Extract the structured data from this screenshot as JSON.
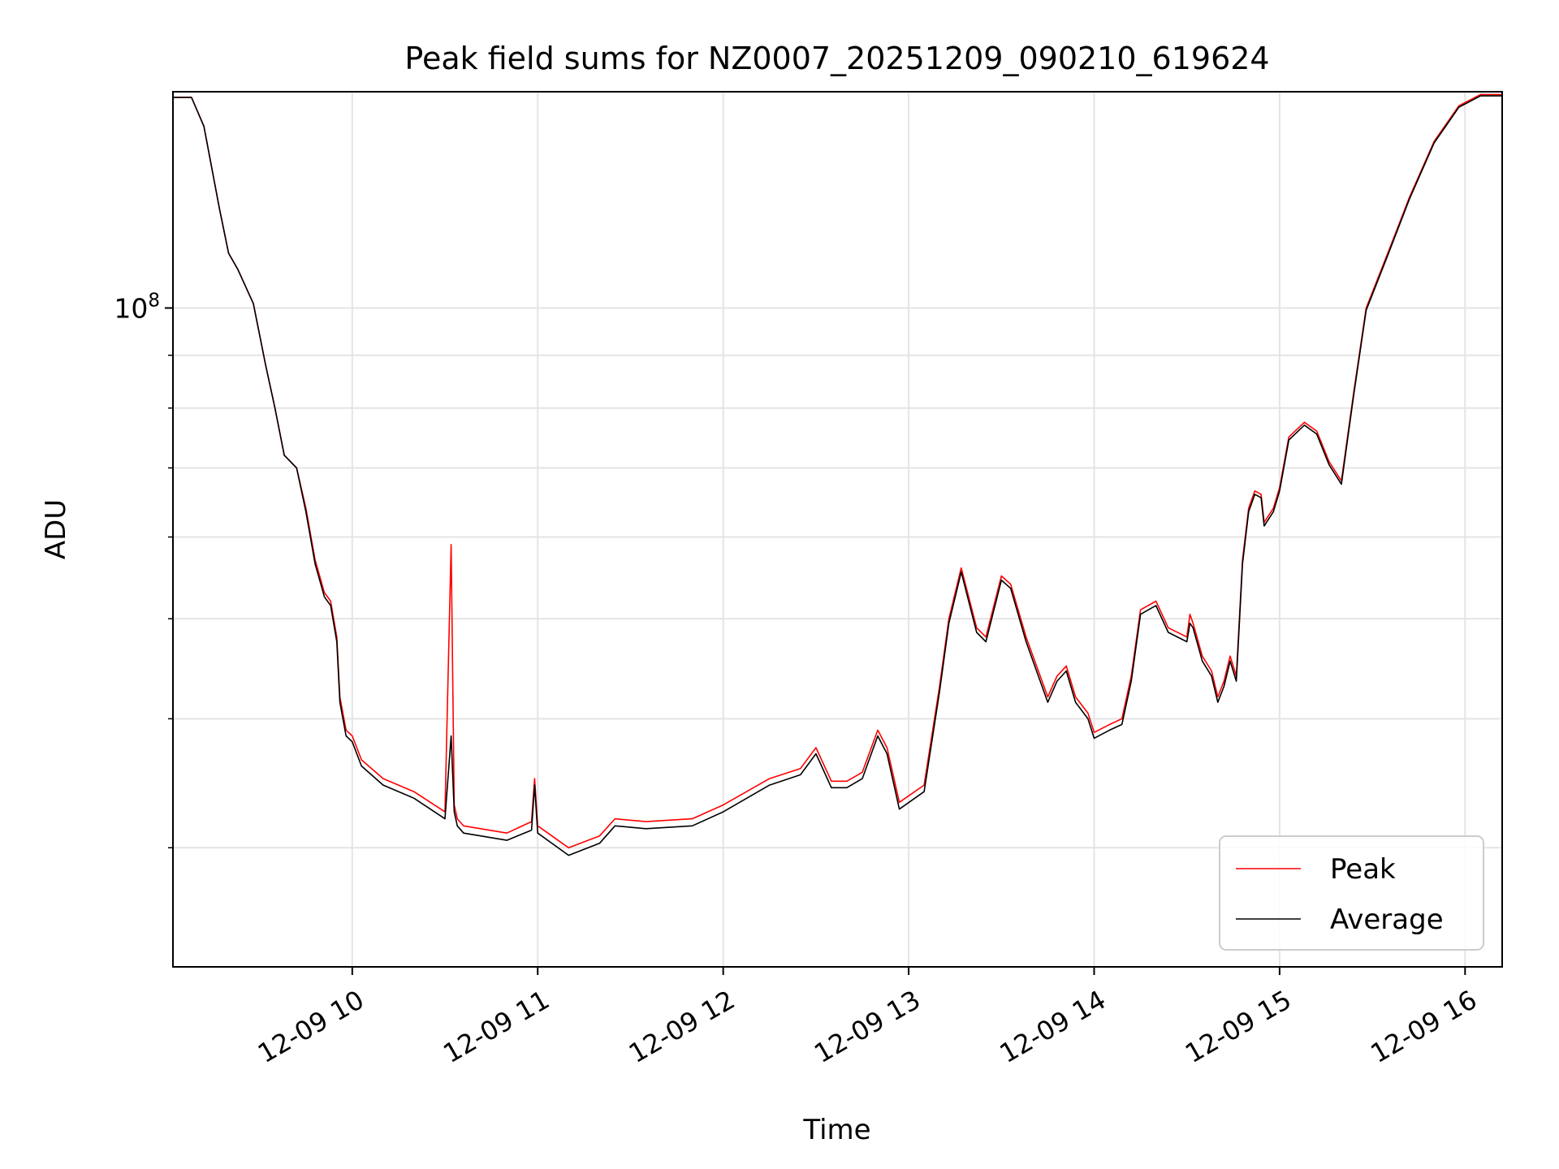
{
  "chart_data": {
    "type": "line",
    "title": "Peak field sums for NZ0007_20251209_090210_619624",
    "xlabel": "Time",
    "ylabel": "ADU",
    "y_scale": "log",
    "y_tick_labels": [
      {
        "value": 100000000,
        "base": "10",
        "exp": "8"
      }
    ],
    "x_ticks": [
      {
        "time": "2025-12-09 10:00",
        "label": "12-09 10"
      },
      {
        "time": "2025-12-09 11:00",
        "label": "12-09 11"
      },
      {
        "time": "2025-12-09 12:00",
        "label": "12-09 12"
      },
      {
        "time": "2025-12-09 13:00",
        "label": "12-09 13"
      },
      {
        "time": "2025-12-09 14:00",
        "label": "12-09 14"
      },
      {
        "time": "2025-12-09 15:00",
        "label": "12-09 15"
      },
      {
        "time": "2025-12-09 16:00",
        "label": "12-09 16"
      }
    ],
    "xlim": [
      "2025-12-09 09:02",
      "2025-12-09 16:12"
    ],
    "ylim": [
      23000000,
      162000000
    ],
    "grid": true,
    "legend_position": "lower-right",
    "colors": {
      "peak": "#ff0000",
      "average": "#000000"
    },
    "series": [
      {
        "name": "Peak",
        "x": [
          "2025-12-09 09:02",
          "2025-12-09 09:08",
          "2025-12-09 09:12",
          "2025-12-09 09:17",
          "2025-12-09 09:20",
          "2025-12-09 09:23",
          "2025-12-09 09:28",
          "2025-12-09 09:32",
          "2025-12-09 09:35",
          "2025-12-09 09:38",
          "2025-12-09 09:42",
          "2025-12-09 09:45",
          "2025-12-09 09:48",
          "2025-12-09 09:51",
          "2025-12-09 09:53",
          "2025-12-09 09:55",
          "2025-12-09 09:56",
          "2025-12-09 09:58",
          "2025-12-09 10:00",
          "2025-12-09 10:03",
          "2025-12-09 10:10",
          "2025-12-09 10:20",
          "2025-12-09 10:30",
          "2025-12-09 10:32",
          "2025-12-09 10:33",
          "2025-12-09 10:34",
          "2025-12-09 10:36",
          "2025-12-09 10:50",
          "2025-12-09 10:58",
          "2025-12-09 10:59",
          "2025-12-09 11:00",
          "2025-12-09 11:10",
          "2025-12-09 11:20",
          "2025-12-09 11:25",
          "2025-12-09 11:35",
          "2025-12-09 11:50",
          "2025-12-09 12:00",
          "2025-12-09 12:15",
          "2025-12-09 12:25",
          "2025-12-09 12:30",
          "2025-12-09 12:35",
          "2025-12-09 12:40",
          "2025-12-09 12:45",
          "2025-12-09 12:50",
          "2025-12-09 12:53",
          "2025-12-09 12:57",
          "2025-12-09 13:05",
          "2025-12-09 13:10",
          "2025-12-09 13:13",
          "2025-12-09 13:17",
          "2025-12-09 13:22",
          "2025-12-09 13:25",
          "2025-12-09 13:30",
          "2025-12-09 13:33",
          "2025-12-09 13:38",
          "2025-12-09 13:45",
          "2025-12-09 13:48",
          "2025-12-09 13:51",
          "2025-12-09 13:54",
          "2025-12-09 13:58",
          "2025-12-09 14:00",
          "2025-12-09 14:05",
          "2025-12-09 14:09",
          "2025-12-09 14:12",
          "2025-12-09 14:15",
          "2025-12-09 14:20",
          "2025-12-09 14:24",
          "2025-12-09 14:30",
          "2025-12-09 14:31",
          "2025-12-09 14:32",
          "2025-12-09 14:35",
          "2025-12-09 14:38",
          "2025-12-09 14:40",
          "2025-12-09 14:42",
          "2025-12-09 14:44",
          "2025-12-09 14:46",
          "2025-12-09 14:48",
          "2025-12-09 14:50",
          "2025-12-09 14:52",
          "2025-12-09 14:54",
          "2025-12-09 14:55",
          "2025-12-09 14:58",
          "2025-12-09 15:00",
          "2025-12-09 15:03",
          "2025-12-09 15:08",
          "2025-12-09 15:12",
          "2025-12-09 15:16",
          "2025-12-09 15:20",
          "2025-12-09 15:24",
          "2025-12-09 15:28",
          "2025-12-09 15:35",
          "2025-12-09 15:42",
          "2025-12-09 15:50",
          "2025-12-09 15:58",
          "2025-12-09 16:05",
          "2025-12-09 16:12"
        ],
        "values": [
          160000000,
          160000000,
          150000000,
          125000000,
          113000000,
          109000000,
          101000000,
          88000000,
          80000000,
          72000000,
          70000000,
          64000000,
          57000000,
          53000000,
          52000000,
          48000000,
          42000000,
          39000000,
          38500000,
          36500000,
          35000000,
          34000000,
          32500000,
          59000000,
          33000000,
          32000000,
          31500000,
          31000000,
          31800000,
          35000000,
          31500000,
          30000000,
          30800000,
          32000000,
          31800000,
          32000000,
          33000000,
          35000000,
          35800000,
          37500000,
          34800000,
          34800000,
          35500000,
          39000000,
          37500000,
          33200000,
          34500000,
          43000000,
          50000000,
          56000000,
          49000000,
          48000000,
          55000000,
          54000000,
          48000000,
          42000000,
          44000000,
          45000000,
          42000000,
          40500000,
          38800000,
          39500000,
          40000000,
          44000000,
          51000000,
          52000000,
          49000000,
          48000000,
          50500000,
          49500000,
          46000000,
          44500000,
          42000000,
          43500000,
          46000000,
          44000000,
          57000000,
          64000000,
          66500000,
          66000000,
          62000000,
          64000000,
          67000000,
          75000000,
          77500000,
          76000000,
          71000000,
          68000000,
          83000000,
          100000000,
          113000000,
          128000000,
          145000000,
          157000000,
          161000000,
          161000000
        ]
      },
      {
        "name": "Average",
        "x": [
          "2025-12-09 09:02",
          "2025-12-09 09:08",
          "2025-12-09 09:12",
          "2025-12-09 09:17",
          "2025-12-09 09:20",
          "2025-12-09 09:23",
          "2025-12-09 09:28",
          "2025-12-09 09:32",
          "2025-12-09 09:35",
          "2025-12-09 09:38",
          "2025-12-09 09:42",
          "2025-12-09 09:45",
          "2025-12-09 09:48",
          "2025-12-09 09:51",
          "2025-12-09 09:53",
          "2025-12-09 09:55",
          "2025-12-09 09:56",
          "2025-12-09 09:58",
          "2025-12-09 10:00",
          "2025-12-09 10:03",
          "2025-12-09 10:10",
          "2025-12-09 10:20",
          "2025-12-09 10:30",
          "2025-12-09 10:32",
          "2025-12-09 10:33",
          "2025-12-09 10:34",
          "2025-12-09 10:36",
          "2025-12-09 10:50",
          "2025-12-09 10:58",
          "2025-12-09 10:59",
          "2025-12-09 11:00",
          "2025-12-09 11:10",
          "2025-12-09 11:20",
          "2025-12-09 11:25",
          "2025-12-09 11:35",
          "2025-12-09 11:50",
          "2025-12-09 12:00",
          "2025-12-09 12:15",
          "2025-12-09 12:25",
          "2025-12-09 12:30",
          "2025-12-09 12:35",
          "2025-12-09 12:40",
          "2025-12-09 12:45",
          "2025-12-09 12:50",
          "2025-12-09 12:53",
          "2025-12-09 12:57",
          "2025-12-09 13:05",
          "2025-12-09 13:10",
          "2025-12-09 13:13",
          "2025-12-09 13:17",
          "2025-12-09 13:22",
          "2025-12-09 13:25",
          "2025-12-09 13:30",
          "2025-12-09 13:33",
          "2025-12-09 13:38",
          "2025-12-09 13:45",
          "2025-12-09 13:48",
          "2025-12-09 13:51",
          "2025-12-09 13:54",
          "2025-12-09 13:58",
          "2025-12-09 14:00",
          "2025-12-09 14:05",
          "2025-12-09 14:09",
          "2025-12-09 14:12",
          "2025-12-09 14:15",
          "2025-12-09 14:20",
          "2025-12-09 14:24",
          "2025-12-09 14:30",
          "2025-12-09 14:31",
          "2025-12-09 14:32",
          "2025-12-09 14:35",
          "2025-12-09 14:38",
          "2025-12-09 14:40",
          "2025-12-09 14:42",
          "2025-12-09 14:44",
          "2025-12-09 14:46",
          "2025-12-09 14:48",
          "2025-12-09 14:50",
          "2025-12-09 14:52",
          "2025-12-09 14:54",
          "2025-12-09 14:55",
          "2025-12-09 14:58",
          "2025-12-09 15:00",
          "2025-12-09 15:03",
          "2025-12-09 15:08",
          "2025-12-09 15:12",
          "2025-12-09 15:16",
          "2025-12-09 15:20",
          "2025-12-09 15:24",
          "2025-12-09 15:28",
          "2025-12-09 15:35",
          "2025-12-09 15:42",
          "2025-12-09 15:50",
          "2025-12-09 15:58",
          "2025-12-09 16:05",
          "2025-12-09 16:12"
        ],
        "values": [
          160000000,
          160000000,
          150000000,
          125000000,
          113000000,
          109000000,
          101000000,
          88000000,
          80000000,
          72000000,
          70000000,
          63500000,
          56500000,
          52500000,
          51500000,
          47500000,
          41500000,
          38500000,
          38000000,
          36000000,
          34500000,
          33500000,
          32000000,
          38500000,
          32500000,
          31500000,
          31000000,
          30500000,
          31200000,
          34500000,
          31000000,
          29500000,
          30300000,
          31500000,
          31300000,
          31500000,
          32500000,
          34500000,
          35300000,
          37000000,
          34300000,
          34300000,
          35000000,
          38500000,
          37000000,
          32700000,
          34000000,
          42500000,
          49500000,
          55500000,
          48500000,
          47500000,
          54500000,
          53500000,
          47500000,
          41500000,
          43500000,
          44500000,
          41500000,
          40000000,
          38300000,
          39000000,
          39500000,
          43500000,
          50500000,
          51500000,
          48500000,
          47500000,
          49500000,
          49000000,
          45500000,
          44000000,
          41500000,
          43000000,
          45500000,
          43500000,
          56500000,
          63500000,
          66000000,
          65500000,
          61500000,
          63500000,
          66500000,
          74500000,
          77000000,
          75500000,
          70500000,
          67500000,
          82500000,
          99500000,
          112500000,
          127500000,
          144500000,
          156500000,
          160500000,
          160500000
        ]
      }
    ]
  }
}
